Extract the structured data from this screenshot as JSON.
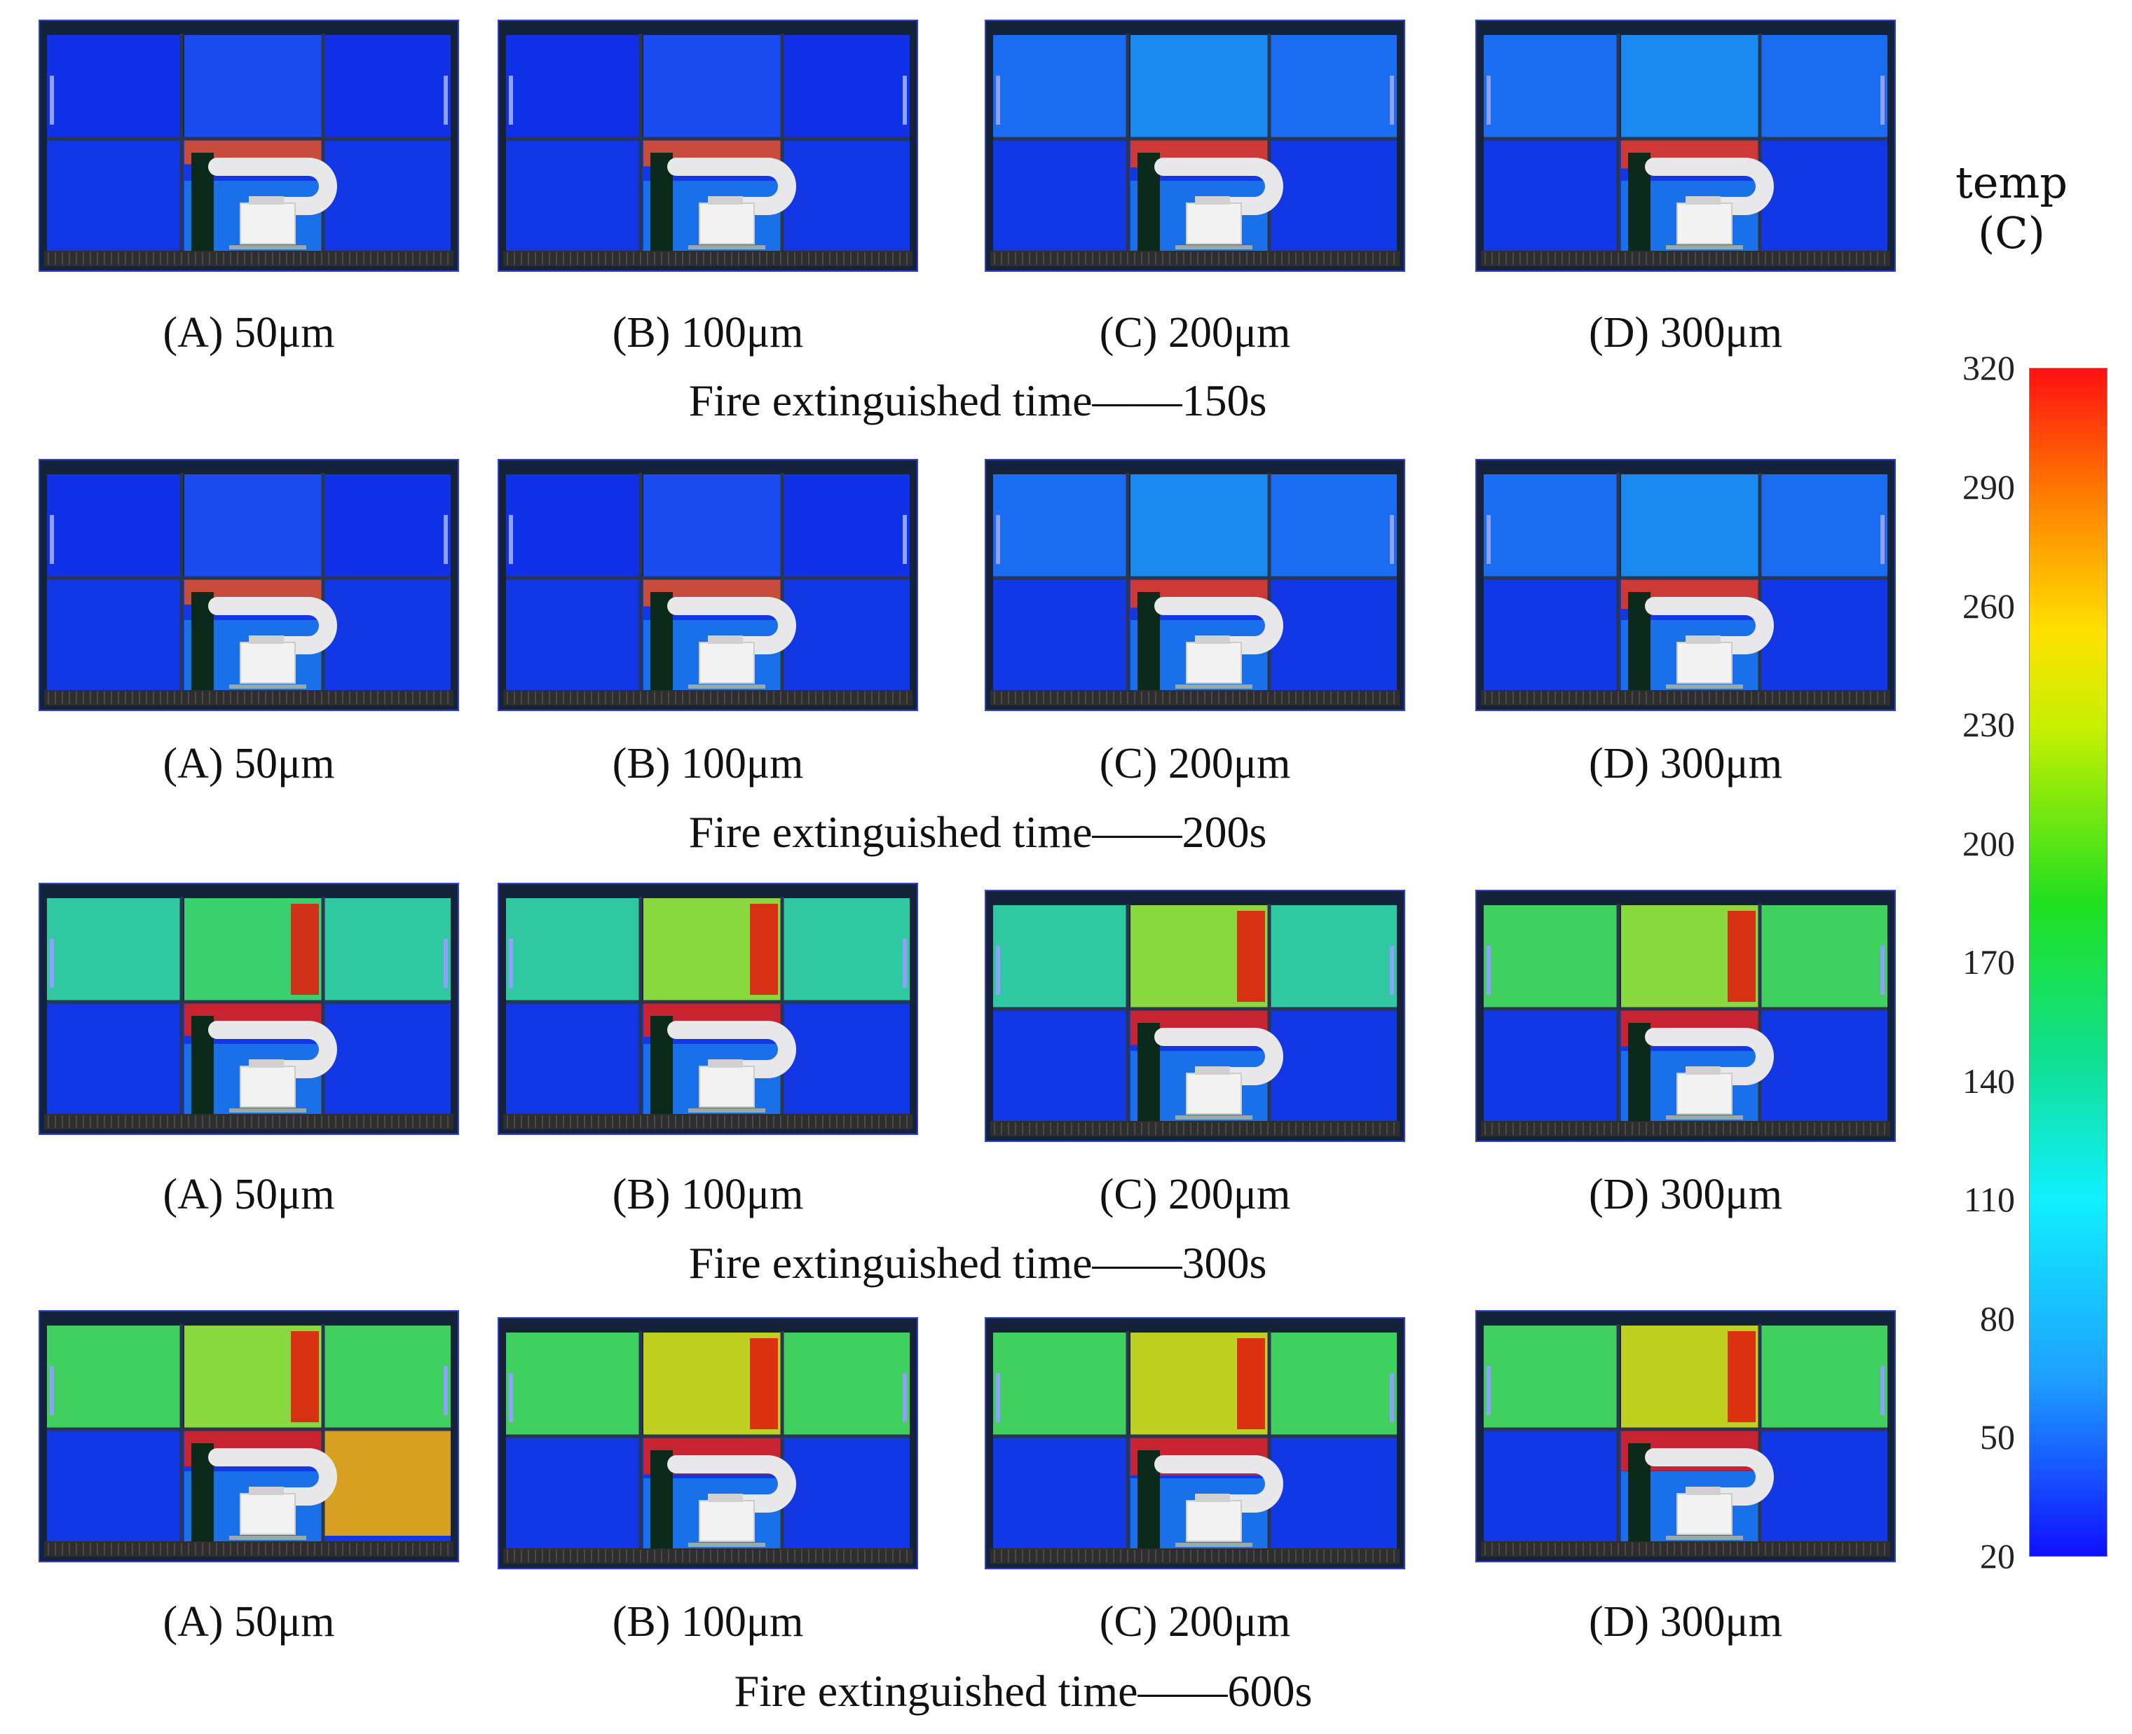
{
  "rows": [
    {
      "caption": "Fire extinguished time——150s",
      "panels": [
        "(A) 50μm",
        "(B) 100μm",
        "(C) 200μm",
        "(D) 300μm"
      ]
    },
    {
      "caption": "Fire extinguished time——200s",
      "panels": [
        "(A) 50μm",
        "(B) 100μm",
        "(C) 200μm",
        "(D) 300μm"
      ]
    },
    {
      "caption": "Fire extinguished time——300s",
      "panels": [
        "(A) 50μm",
        "(B) 100μm",
        "(C) 200μm",
        "(D) 300μm"
      ]
    },
    {
      "caption": "Fire extinguished time——600s",
      "panels": [
        "(A) 50μm",
        "(B) 100μm",
        "(C) 200μm",
        "(D) 300μm"
      ]
    }
  ],
  "legend": {
    "title_line1": "temp",
    "title_line2": "(C)",
    "ticks": [
      "320",
      "290",
      "260",
      "230",
      "200",
      "170",
      "140",
      "110",
      "80",
      "50",
      "20"
    ]
  }
}
